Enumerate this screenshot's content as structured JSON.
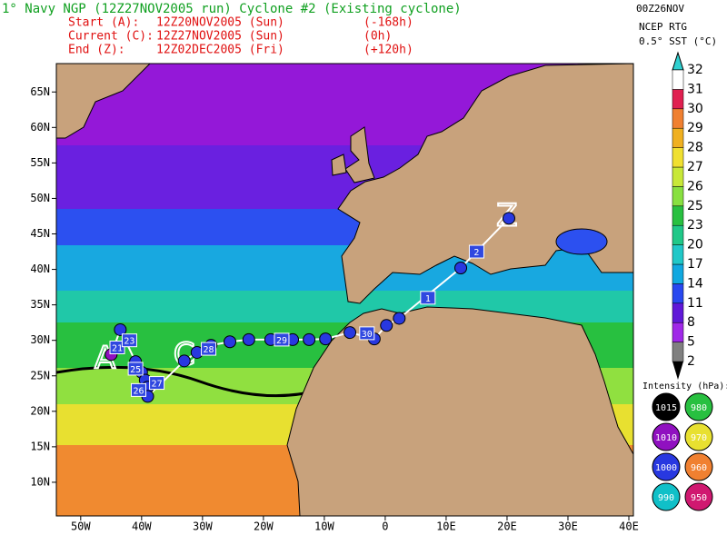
{
  "header": {
    "title": "1° Navy NGP (12Z27NOV2005 run) Cyclone #2 (Existing cyclone)",
    "lines": [
      [
        "Start (A):",
        "12Z20NOV2005 (Sun)",
        "(-168h)"
      ],
      [
        "Current (C):",
        "12Z27NOV2005 (Sun)",
        "(0h)"
      ],
      [
        "End (Z):",
        "12Z02DEC2005 (Fri)",
        "(+120h)"
      ]
    ]
  },
  "sst_legend": {
    "date": "00Z26NOV",
    "source": "NCEP RTG",
    "product": "0.5° SST (°C)",
    "levels": [
      2,
      5,
      8,
      11,
      14,
      17,
      20,
      23,
      25,
      26,
      27,
      28,
      29,
      30,
      31,
      32
    ],
    "colors": [
      "#808080",
      "#a028e8",
      "#6018d8",
      "#2848f0",
      "#10a8e0",
      "#20c8c8",
      "#20c888",
      "#28c040",
      "#88e040",
      "#c8e838",
      "#f0e030",
      "#f0b020",
      "#f08030",
      "#e02050",
      "#ffffff"
    ]
  },
  "map": {
    "xlim": [
      -54,
      40
    ],
    "ylim": [
      5,
      69
    ],
    "lat_ticks": [
      {
        "value": 65,
        "label": "65N"
      },
      {
        "value": 60,
        "label": "60N"
      },
      {
        "value": 55,
        "label": "55N"
      },
      {
        "value": 50,
        "label": "50N"
      },
      {
        "value": 45,
        "label": "45N"
      },
      {
        "value": 40,
        "label": "40N"
      },
      {
        "value": 35,
        "label": "35N"
      },
      {
        "value": 30,
        "label": "30N"
      },
      {
        "value": 25,
        "label": "25N"
      },
      {
        "value": 20,
        "label": "20N"
      },
      {
        "value": 15,
        "label": "15N"
      },
      {
        "value": 10,
        "label": "10N"
      }
    ],
    "lon_ticks": [
      {
        "value": -50,
        "label": "50W"
      },
      {
        "value": -40,
        "label": "40W"
      },
      {
        "value": -30,
        "label": "30W"
      },
      {
        "value": -20,
        "label": "20W"
      },
      {
        "value": -10,
        "label": "10W"
      },
      0,
      {
        "value": 10,
        "label": "10E"
      },
      {
        "value": 20,
        "label": "20E"
      },
      {
        "value": 30,
        "label": "30E"
      },
      {
        "value": 40,
        "label": "40E"
      }
    ],
    "track": {
      "lon": [
        -45,
        -43.5,
        -41,
        -40,
        -39.4,
        -39,
        -39,
        -33,
        -30.9,
        -28.6,
        -25.5,
        -22.4,
        -18.8,
        -15.2,
        -12.5,
        -9.8,
        -5.8,
        -1.8,
        0.2,
        2.3,
        12.4,
        20.3
      ],
      "lat": [
        28,
        31.5,
        27,
        25.5,
        24.4,
        23.4,
        22.1,
        27.1,
        28.3,
        29.3,
        29.8,
        30.1,
        30.1,
        30.1,
        30.1,
        30.2,
        31.1,
        30.2,
        32.1,
        33.1,
        40.2,
        47.2
      ],
      "colors": [
        "#9010c0",
        "#2838e0",
        "#2838e0",
        "#2838e0",
        "#2838e0",
        "#2838e0",
        "#2838e0",
        "#2838e0",
        "#2838e0",
        "#2838e0",
        "#2838e0",
        "#2838e0",
        "#2838e0",
        "#2838e0",
        "#2838e0",
        "#2838e0",
        "#2838e0",
        "#2838e0",
        "#2838e0",
        "#2838e0",
        "#2838e0",
        "#2838e0"
      ]
    },
    "day_labels": {
      "text": [
        "21",
        "23",
        "25",
        "26",
        "27",
        "28",
        "29",
        "30",
        "1",
        "2"
      ],
      "lon": [
        -44,
        -42,
        -41,
        -40.5,
        -37.5,
        -29,
        -17,
        -3,
        7,
        15
      ],
      "lat": [
        29,
        30,
        26,
        23,
        24,
        28.8,
        30.1,
        31,
        36,
        42.5
      ],
      "color": "#3048e0"
    },
    "markers": {
      "text": [
        "A",
        "C",
        "Z"
      ],
      "lon": [
        -46,
        -33,
        20
      ],
      "lat": [
        27.3,
        27.8,
        47.4
      ]
    }
  },
  "intensity_legend": {
    "title": "Intensity (hPa):",
    "values": [
      1015,
      1010,
      1000,
      990,
      980,
      970,
      960,
      950
    ],
    "colors": [
      "#000000",
      "#9010c0",
      "#2838e0",
      "#10c0c8",
      "#28c040",
      "#e8e030",
      "#f08030",
      "#d01870"
    ]
  }
}
